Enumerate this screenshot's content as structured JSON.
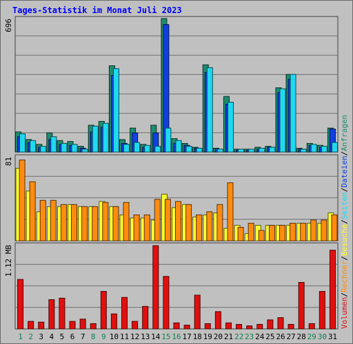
{
  "chart_data": {
    "type": "bar",
    "title": "Tages-Statistik im Monat Juli 2023",
    "colors": {
      "background": "#c0c0c0",
      "title": "#0000ff",
      "anfragen": "#1f8c6e",
      "dateien": "#1040e0",
      "seiten": "#20d8f0",
      "besuche": "#ffff30",
      "rechner": "#ff8c10",
      "volumen": "#e01010",
      "weekend_day": "#108050",
      "weekday": "#000000",
      "grid": "#707070"
    },
    "days": [
      "1",
      "2",
      "3",
      "4",
      "5",
      "6",
      "7",
      "8",
      "9",
      "10",
      "11",
      "12",
      "13",
      "14",
      "15",
      "16",
      "17",
      "18",
      "19",
      "20",
      "21",
      "22",
      "23",
      "24",
      "25",
      "26",
      "27",
      "28",
      "29",
      "30",
      "31"
    ],
    "weekend_days": [
      "1",
      "2",
      "8",
      "9",
      "15",
      "16",
      "22",
      "23",
      "29",
      "30"
    ],
    "panels": [
      {
        "id": "requests",
        "ymax_label": "696",
        "ymax": 696,
        "series": [
          {
            "name": "Anfragen",
            "values": [
              105,
              65,
              40,
              100,
              60,
              55,
              30,
              140,
              160,
              450,
              65,
              125,
              40,
              140,
              696,
              70,
              45,
              25,
              455,
              20,
              290,
              15,
              15,
              25,
              30,
              335,
              405,
              20,
              45,
              35,
              125
            ]
          },
          {
            "name": "Dateien",
            "values": [
              80,
              50,
              25,
              65,
              40,
              35,
              20,
              105,
              130,
              400,
              45,
              100,
              25,
              100,
              665,
              45,
              35,
              20,
              415,
              15,
              250,
              10,
              10,
              15,
              25,
              310,
              380,
              15,
              35,
              25,
              120
            ]
          },
          {
            "name": "Seiten",
            "values": [
              95,
              60,
              30,
              80,
              45,
              40,
              15,
              135,
              150,
              435,
              40,
              50,
              35,
              30,
              125,
              60,
              30,
              20,
              440,
              15,
              260,
              15,
              15,
              20,
              25,
              330,
              405,
              15,
              40,
              30,
              50
            ]
          }
        ]
      },
      {
        "id": "visits",
        "ymax_label": "81",
        "ymax": 81,
        "series": [
          {
            "name": "Besuche",
            "values": [
              70,
              48,
              28,
              33,
              33,
              35,
              33,
              33,
              38,
              33,
              25,
              22,
              22,
              20,
              45,
              32,
              35,
              23,
              25,
              27,
              12,
              15,
              7,
              15,
              15,
              15,
              15,
              17,
              17,
              17,
              27
            ]
          },
          {
            "name": "Rechner",
            "values": [
              78,
              57,
              39,
              39,
              35,
              35,
              33,
              33,
              37,
              33,
              37,
              25,
              25,
              40,
              40,
              38,
              35,
              25,
              28,
              35,
              56,
              13,
              17,
              10,
              15,
              15,
              17,
              17,
              20,
              20,
              25
            ]
          }
        ]
      },
      {
        "id": "volume",
        "ymax_label": "1.12 MB",
        "ymax": 1.12,
        "series": [
          {
            "name": "Volumen",
            "values": [
              0.66,
              0.1,
              0.09,
              0.39,
              0.41,
              0.1,
              0.13,
              0.07,
              0.5,
              0.2,
              0.42,
              0.1,
              0.3,
              1.11,
              0.7,
              0.08,
              0.05,
              0.45,
              0.07,
              0.23,
              0.08,
              0.06,
              0.04,
              0.06,
              0.12,
              0.15,
              0.06,
              0.62,
              0.07,
              0.5,
              1.05
            ]
          }
        ]
      }
    ],
    "right_legend": [
      "Volumen",
      "/",
      "Rechner",
      "/",
      "Besuche",
      "/",
      "Seiten",
      "/",
      "Dateien",
      "/",
      "Anfragen"
    ]
  }
}
